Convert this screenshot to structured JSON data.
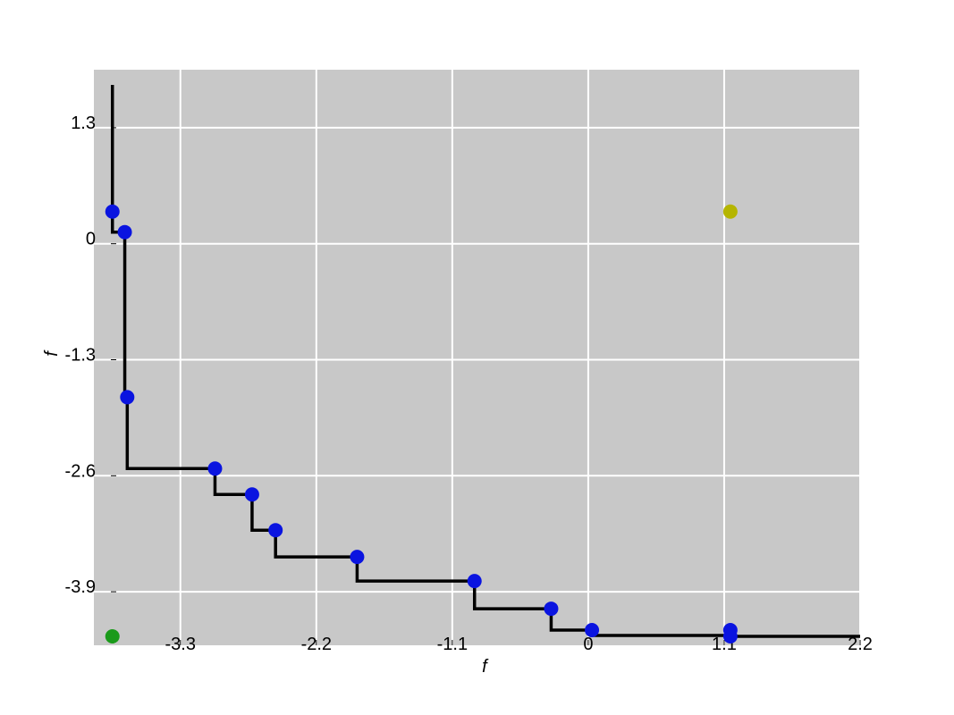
{
  "chart_data": {
    "type": "scatter",
    "title": "",
    "xlabel": "f",
    "ylabel": "f",
    "xlim": [
      -4.0,
      2.2
    ],
    "ylim": [
      -4.5,
      1.95
    ],
    "xticks": [
      -3.3,
      -2.2,
      -1.1,
      0,
      1.1,
      2.2
    ],
    "xtick_labels": [
      "-3.3",
      "-2.2",
      "-1.1",
      "0",
      "1.1",
      "2.2"
    ],
    "yticks": [
      1.3,
      0,
      -1.3,
      -2.6,
      -3.9
    ],
    "ytick_labels": [
      "1.3",
      "0",
      "-1.3",
      "-2.6",
      "-3.9"
    ],
    "grid": true,
    "background": "#c8c8c8",
    "step_line": {
      "color": "#000000",
      "start": [
        -3.85,
        1.78
      ],
      "end": [
        2.2,
        -4.4
      ],
      "points": [
        [
          -3.85,
          0.36
        ],
        [
          -3.75,
          0.13
        ],
        [
          -3.73,
          -1.72
        ],
        [
          -3.02,
          -2.52
        ],
        [
          -2.72,
          -2.81
        ],
        [
          -2.53,
          -3.21
        ],
        [
          -1.87,
          -3.51
        ],
        [
          -0.92,
          -3.78
        ],
        [
          -0.3,
          -4.09
        ],
        [
          0.03,
          -4.33
        ],
        [
          1.15,
          -4.39
        ]
      ]
    },
    "series": [
      {
        "color": "#0a14e0",
        "points": [
          [
            -3.85,
            0.36
          ],
          [
            -3.75,
            0.13
          ],
          [
            -3.73,
            -1.72
          ],
          [
            -3.02,
            -2.52
          ],
          [
            -2.72,
            -2.81
          ],
          [
            -2.53,
            -3.21
          ],
          [
            -1.87,
            -3.51
          ],
          [
            -0.92,
            -3.78
          ],
          [
            -0.3,
            -4.09
          ],
          [
            0.03,
            -4.33
          ],
          [
            1.15,
            -4.33
          ],
          [
            1.15,
            -4.4
          ]
        ]
      },
      {
        "color": "#b5b500",
        "points": [
          [
            1.15,
            0.36
          ]
        ]
      },
      {
        "color": "#1a9a1a",
        "points": [
          [
            -3.85,
            -4.4
          ]
        ]
      }
    ]
  }
}
